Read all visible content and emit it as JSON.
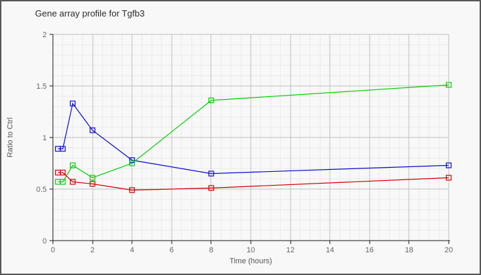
{
  "chart_data": {
    "type": "line",
    "title": "Gene array profile for Tgfb3",
    "xlabel": "Time (hours)",
    "ylabel": "Ratio to Ctrl",
    "xlim": [
      0,
      20
    ],
    "ylim": [
      0,
      2
    ],
    "x_ticks": [
      0,
      2,
      4,
      6,
      8,
      10,
      12,
      14,
      16,
      18,
      20
    ],
    "y_ticks": [
      0,
      0.5,
      1,
      1.5,
      2
    ],
    "y_tick_labels": [
      "0",
      "0.5",
      "1",
      "1.5",
      "2"
    ],
    "minor_grid": {
      "x_step": 0.5,
      "y_step": 0.1
    },
    "grid": true,
    "legend": "none",
    "marker": "open-square",
    "x": [
      0.25,
      0.5,
      1,
      2,
      4,
      8,
      20
    ],
    "series": [
      {
        "name": "blue-series",
        "color": "#0b0bd0",
        "values": [
          0.89,
          0.89,
          1.33,
          1.07,
          0.78,
          0.65,
          0.73
        ]
      },
      {
        "name": "green-series",
        "color": "#00d000",
        "values": [
          0.57,
          0.57,
          0.73,
          0.61,
          0.75,
          1.36,
          1.51
        ]
      },
      {
        "name": "red-series",
        "color": "#d40000",
        "values": [
          0.66,
          0.66,
          0.57,
          0.55,
          0.49,
          0.51,
          0.61
        ]
      }
    ],
    "colors": {
      "background": "#f8f8f8",
      "grid_major": "#c0c0c0",
      "grid_minor": "#eaeaea",
      "axis": "#1a1a1a",
      "tick_label": "#666666",
      "title": "#2b2b2b",
      "axis_label": "#555555",
      "border": "#575757"
    }
  }
}
